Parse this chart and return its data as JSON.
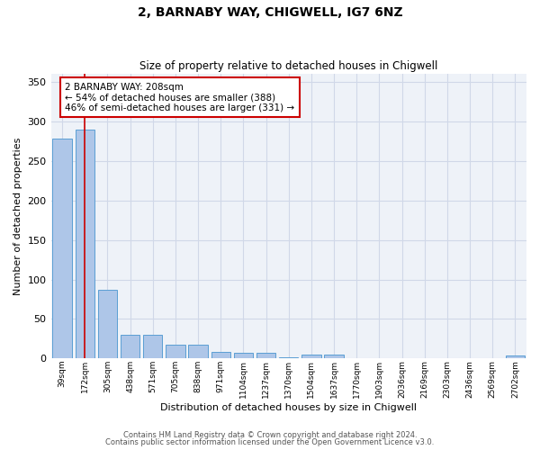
{
  "title1": "2, BARNABY WAY, CHIGWELL, IG7 6NZ",
  "title2": "Size of property relative to detached houses in Chigwell",
  "xlabel": "Distribution of detached houses by size in Chigwell",
  "ylabel": "Number of detached properties",
  "bar_labels": [
    "39sqm",
    "172sqm",
    "305sqm",
    "438sqm",
    "571sqm",
    "705sqm",
    "838sqm",
    "971sqm",
    "1104sqm",
    "1237sqm",
    "1370sqm",
    "1504sqm",
    "1637sqm",
    "1770sqm",
    "1903sqm",
    "2036sqm",
    "2169sqm",
    "2303sqm",
    "2436sqm",
    "2569sqm",
    "2702sqm"
  ],
  "bar_values": [
    278,
    290,
    87,
    30,
    30,
    17,
    17,
    9,
    7,
    7,
    2,
    5,
    5,
    0,
    0,
    0,
    0,
    0,
    0,
    0,
    4
  ],
  "bar_color": "#aec6e8",
  "bar_edge_color": "#5a9fd4",
  "grid_color": "#d0d8e8",
  "bg_color": "#eef2f8",
  "vline_x": 1,
  "vline_color": "#cc0000",
  "annotation_text": "2 BARNABY WAY: 208sqm\n← 54% of detached houses are smaller (388)\n46% of semi-detached houses are larger (331) →",
  "footer1": "Contains HM Land Registry data © Crown copyright and database right 2024.",
  "footer2": "Contains public sector information licensed under the Open Government Licence v3.0.",
  "ylim": [
    0,
    360
  ],
  "yticks": [
    0,
    50,
    100,
    150,
    200,
    250,
    300,
    350
  ],
  "figsize": [
    6.0,
    5.0
  ],
  "dpi": 100
}
